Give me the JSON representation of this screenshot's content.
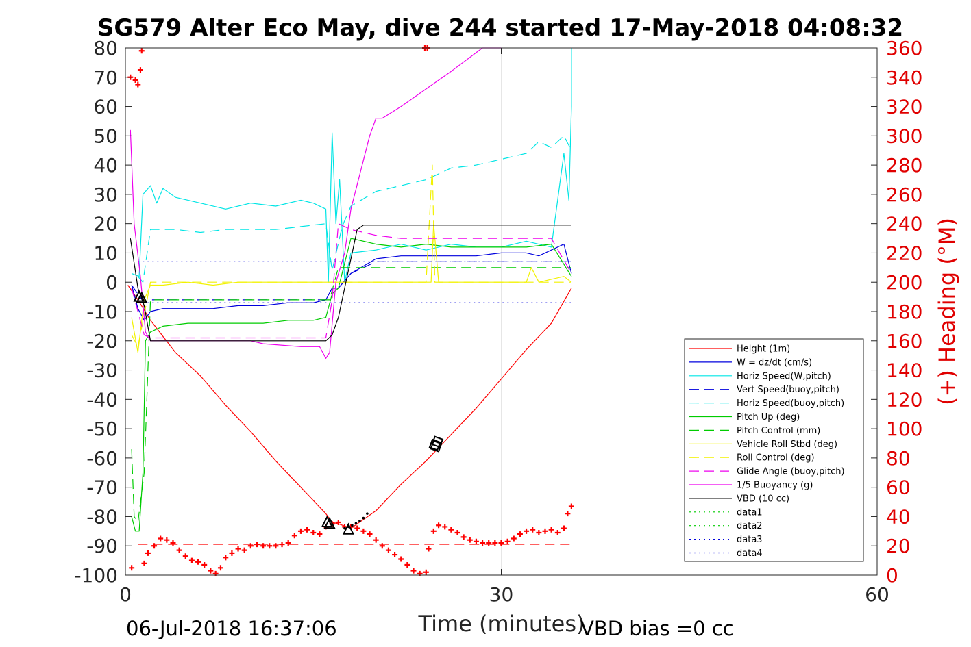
{
  "chart_data": {
    "type": "line",
    "title": "SG579 Alter Eco May, dive 244 started 17-May-2018 04:08:32",
    "xlabel": "Time (minutes)",
    "ylabel": "",
    "ylabel_right": "(+) Heading (°M)",
    "xlim": [
      0,
      60
    ],
    "ylim": [
      -100,
      80
    ],
    "ylim_right": [
      0,
      360
    ],
    "x_ticks": [
      0,
      30,
      60
    ],
    "y_ticks": [
      80,
      70,
      60,
      50,
      40,
      30,
      20,
      10,
      0,
      -10,
      -20,
      -30,
      -40,
      -50,
      -60,
      -70,
      -80,
      -90,
      -100
    ],
    "y_ticks_right": [
      360,
      340,
      320,
      300,
      280,
      260,
      240,
      220,
      200,
      180,
      160,
      140,
      120,
      100,
      80,
      60,
      40,
      20,
      0
    ],
    "grid": "x-only",
    "legend_position": "lower-right",
    "footer_left": "06-Jul-2018 16:37:06",
    "footer_right": "VBD bias =0 cc",
    "colors": {
      "red": "#ff0000",
      "blue": "#0000dd",
      "cyan": "#00e5e5",
      "green": "#00cc00",
      "yellow": "#f2f200",
      "magenta": "#ee00ee",
      "black": "#000000"
    },
    "series": [
      {
        "name": "Height (1m)",
        "color": "#ff0000",
        "dash": "solid",
        "x": [
          0.2,
          1,
          2,
          4,
          6,
          8,
          10,
          12,
          14,
          16,
          16.5,
          17,
          18,
          19,
          20,
          22,
          24,
          26,
          28,
          30,
          32,
          34,
          35.6
        ],
        "y": [
          -1,
          -6,
          -13,
          -24,
          -32,
          -42,
          -51,
          -61,
          -70,
          -79,
          -82,
          -82.5,
          -84,
          -81,
          -78,
          -69,
          -61,
          -52,
          -43,
          -33,
          -23,
          -14,
          -2
        ]
      },
      {
        "name": "W = dz/dt (cm/s)",
        "color": "#0000dd",
        "dash": "solid",
        "x": [
          0.5,
          1,
          1.5,
          2,
          3,
          5,
          7,
          9,
          11,
          13,
          15,
          16,
          16.5,
          17,
          18,
          20,
          22,
          24,
          26,
          28,
          30,
          32,
          33,
          34,
          35,
          35.6
        ],
        "y": [
          -1,
          -9,
          -13,
          -10,
          -9,
          -9,
          -9,
          -8,
          -8,
          -7,
          -7,
          -6,
          -2,
          -2,
          3,
          8,
          9,
          9,
          9,
          9,
          10,
          10,
          9,
          11,
          13,
          3
        ]
      },
      {
        "name": "Horiz Speed(W,pitch)",
        "color": "#00e5e5",
        "dash": "solid",
        "x": [
          0.5,
          1.1,
          1.4,
          2,
          2.5,
          3,
          4,
          6,
          8,
          10,
          12,
          14,
          15,
          16,
          16.2,
          16.5,
          16.8,
          17.1,
          17.5,
          18,
          20,
          22,
          24,
          26,
          28,
          30,
          32,
          34,
          35,
          35.4,
          35.6,
          35.6
        ],
        "y": [
          3,
          2,
          30,
          33,
          27,
          32,
          29,
          27,
          25,
          27,
          26,
          28,
          27,
          25,
          0,
          51,
          20,
          35,
          0,
          10,
          11,
          13,
          11,
          13,
          12,
          12,
          14,
          12,
          44,
          28,
          60,
          80
        ]
      },
      {
        "name": "Vert Speed(buoy,pitch)",
        "color": "#0000dd",
        "dash": "dashed",
        "x": [
          0.5,
          1.5,
          2,
          4,
          6,
          8,
          10,
          12,
          14,
          16,
          16.5,
          17,
          18,
          20,
          22,
          24,
          26,
          28,
          30,
          32,
          34,
          35.6
        ],
        "y": [
          -1,
          -7,
          -6,
          -6,
          -6,
          -6,
          -6,
          -6,
          -6,
          -6,
          -2,
          -2,
          3,
          7,
          7,
          7,
          7,
          7,
          7,
          7,
          7,
          7
        ]
      },
      {
        "name": "Horiz Speed(buoy,pitch)",
        "color": "#00e5e5",
        "dash": "dashed",
        "x": [
          1,
          1.4,
          2,
          4,
          6,
          8,
          10,
          12,
          14,
          16,
          16.5,
          17.3,
          18,
          20,
          22,
          24,
          26,
          28,
          30,
          32,
          33,
          34,
          35,
          35.6
        ],
        "y": [
          2,
          0,
          18,
          18,
          17,
          18,
          18,
          18,
          19,
          20,
          4,
          19,
          26,
          31,
          33,
          35,
          39,
          40,
          42,
          44,
          48,
          46,
          50,
          45
        ]
      },
      {
        "name": "Pitch Up (deg)",
        "color": "#00cc00",
        "dash": "solid",
        "x": [
          0.5,
          0.8,
          1.1,
          1.4,
          1.6,
          2,
          3,
          5,
          7,
          9,
          11,
          13,
          15,
          16,
          16.5,
          17,
          18,
          20,
          22,
          24,
          26,
          28,
          30,
          32,
          34,
          35.6
        ],
        "y": [
          -80,
          -85,
          -85,
          -65,
          -20,
          -17,
          -15,
          -14,
          -14,
          -14,
          -14,
          -13,
          -13,
          -12,
          -4,
          -2,
          15,
          13,
          12,
          13,
          12,
          12,
          12,
          12,
          13,
          2
        ]
      },
      {
        "name": "Pitch Control (mm)",
        "color": "#00cc00",
        "dash": "dashed",
        "x": [
          0.5,
          0.7,
          1,
          1.5,
          2,
          4,
          6,
          8,
          10,
          12,
          14,
          16,
          16.3,
          17,
          17.5,
          19,
          22,
          26,
          30,
          34,
          35.6
        ],
        "y": [
          -57,
          -80,
          -82,
          -65,
          -6,
          -6,
          -6,
          -6,
          -6,
          -6,
          -6,
          -6,
          -6,
          5,
          5,
          5,
          5,
          5,
          5,
          5,
          5
        ]
      },
      {
        "name": "Vehicle Roll Stbd (deg)",
        "color": "#f2f200",
        "dash": "solid",
        "x": [
          0.5,
          1,
          1.5,
          2,
          3,
          5,
          7,
          9,
          11,
          13,
          15,
          16,
          17,
          18,
          20,
          22,
          24,
          24.4,
          24.6,
          25,
          27,
          29,
          31,
          32,
          32.4,
          33,
          35,
          35.6
        ],
        "y": [
          -12,
          -24,
          -6,
          -1,
          -1,
          0,
          -1,
          0,
          0,
          0,
          0,
          0,
          0,
          0,
          0,
          0,
          0,
          0,
          20,
          0,
          0,
          0,
          0,
          0,
          5,
          0,
          2,
          0
        ]
      },
      {
        "name": "Roll Control (deg)",
        "color": "#f2f200",
        "dash": "dashed",
        "x": [
          0.5,
          1,
          2,
          5,
          10,
          15,
          17,
          20,
          24,
          24.5,
          24.7,
          25,
          30,
          35.6
        ],
        "y": [
          -18,
          -22,
          0,
          0,
          0,
          0,
          0,
          0,
          0,
          40,
          0,
          0,
          0,
          0
        ]
      },
      {
        "name": "Glide Angle (buoy,pitch)",
        "color": "#ee00ee",
        "dash": "dashed",
        "x": [
          0.5,
          1.5,
          2,
          4,
          6,
          8,
          10,
          12,
          14,
          16,
          16.5,
          17,
          18,
          20,
          22,
          24,
          26,
          28,
          30,
          32,
          34,
          35.6
        ],
        "y": [
          -2,
          -18,
          -19,
          -19,
          -19,
          -19,
          -19,
          -19,
          -19,
          -19,
          -6,
          20,
          18,
          16,
          15,
          15,
          15,
          15,
          15,
          15,
          15,
          3
        ]
      },
      {
        "name": "1/5 Buoyancy (g)",
        "color": "#ee00ee",
        "dash": "solid",
        "x": [
          0.4,
          0.7,
          1.2,
          1.6,
          2,
          10,
          11,
          14,
          15.5,
          16,
          16.3,
          16.8,
          17.5,
          18,
          19.5,
          20,
          20.5,
          22,
          24,
          26,
          28.5,
          30
        ],
        "y": [
          52,
          20,
          2,
          -17,
          -20,
          -20,
          -21,
          -22,
          -22,
          -26,
          -24,
          0,
          10,
          25,
          50,
          56,
          56,
          60,
          66,
          72,
          80,
          80
        ]
      },
      {
        "name": "VBD (10 cc)",
        "color": "#000000",
        "dash": "solid",
        "x": [
          0.4,
          1,
          1.5,
          2,
          8,
          14,
          16,
          16.5,
          17,
          18,
          18.5,
          19,
          22,
          26,
          30,
          34,
          35.6
        ],
        "y": [
          15,
          -2,
          -8,
          -20,
          -20,
          -20,
          -20,
          -18,
          -12,
          8,
          18,
          19.5,
          19.5,
          19.5,
          19.5,
          19.5,
          19.5
        ]
      },
      {
        "name": "data1",
        "color": "#00cc00",
        "dash": "dotted",
        "x": [],
        "y": []
      },
      {
        "name": "data2",
        "color": "#00cc00",
        "dash": "dotted",
        "x": [],
        "y": []
      },
      {
        "name": "data3",
        "color": "#0000dd",
        "dash": "dotted",
        "x": [
          1,
          35.6
        ],
        "y": [
          7,
          7
        ]
      },
      {
        "name": "data4",
        "color": "#0000dd",
        "dash": "dotted",
        "x": [
          1,
          35.6
        ],
        "y": [
          -7,
          -7
        ]
      }
    ],
    "heading": {
      "color": "#ff0000",
      "marker": "+",
      "x": [
        0.4,
        0.8,
        1,
        1.2,
        1.3,
        0.5,
        1.5,
        1.8,
        2.3,
        2.8,
        3.3,
        3.8,
        4.3,
        4.8,
        5.3,
        5.8,
        6.3,
        6.8,
        7.2,
        7.6,
        8,
        8.5,
        9,
        9.5,
        10,
        10.5,
        11,
        11.5,
        12,
        12.5,
        13,
        13.5,
        14,
        14.5,
        15,
        15.5,
        16,
        16.5,
        17,
        17.5,
        18,
        18.5,
        19,
        19.5,
        20,
        20.5,
        21,
        21.5,
        22,
        22.5,
        23,
        23.5,
        24,
        24.2,
        24.6,
        25,
        25.5,
        26,
        26.5,
        27,
        27.5,
        28,
        28.5,
        29,
        29.5,
        30,
        30.5,
        31,
        31.5,
        32,
        32.5,
        33,
        33.5,
        34,
        34.5,
        35,
        35.3,
        35.6,
        23.9,
        24.1
      ],
      "y": [
        340,
        338,
        335,
        345,
        358,
        5,
        8,
        15,
        20,
        25,
        24,
        22,
        17,
        13,
        10,
        9,
        7,
        3,
        1,
        5,
        12,
        15,
        18,
        17,
        20,
        21,
        20,
        20,
        20,
        21,
        22,
        27,
        30,
        31,
        29,
        28,
        33,
        35,
        36,
        33,
        33,
        32,
        30,
        28,
        24,
        20,
        17,
        14,
        11,
        7,
        3,
        1,
        2,
        18,
        30,
        34,
        33,
        31,
        29,
        26,
        24,
        23,
        22,
        22,
        22,
        22,
        23,
        25,
        28,
        30,
        31,
        29,
        30,
        31,
        29,
        32,
        42,
        47,
        361,
        362
      ]
    },
    "heading_ref": {
      "color": "#ff0000",
      "dash": "dashed",
      "y": 21
    },
    "markers": [
      {
        "shape": "triangle",
        "x": 1.1,
        "y": -5
      },
      {
        "shape": "triangle",
        "x": 1.3,
        "y": -5.5
      },
      {
        "shape": "triangle",
        "x": 16.1,
        "y": -82
      },
      {
        "shape": "triangle",
        "x": 16.3,
        "y": -82.5
      },
      {
        "shape": "triangle",
        "x": 17.8,
        "y": -84.5
      },
      {
        "shape": "square",
        "x": 24.7,
        "y": -55.5
      },
      {
        "shape": "square",
        "x": 24.9,
        "y": -54.5
      },
      {
        "shape": "square",
        "x": 24.8,
        "y": -56
      }
    ],
    "black_dots": {
      "x": [
        17.5,
        17.8,
        18.1,
        18.4,
        18.7,
        19,
        19.3
      ],
      "y": [
        -84,
        -83.5,
        -83,
        -82.3,
        -81.5,
        -80.5,
        -79
      ]
    }
  }
}
